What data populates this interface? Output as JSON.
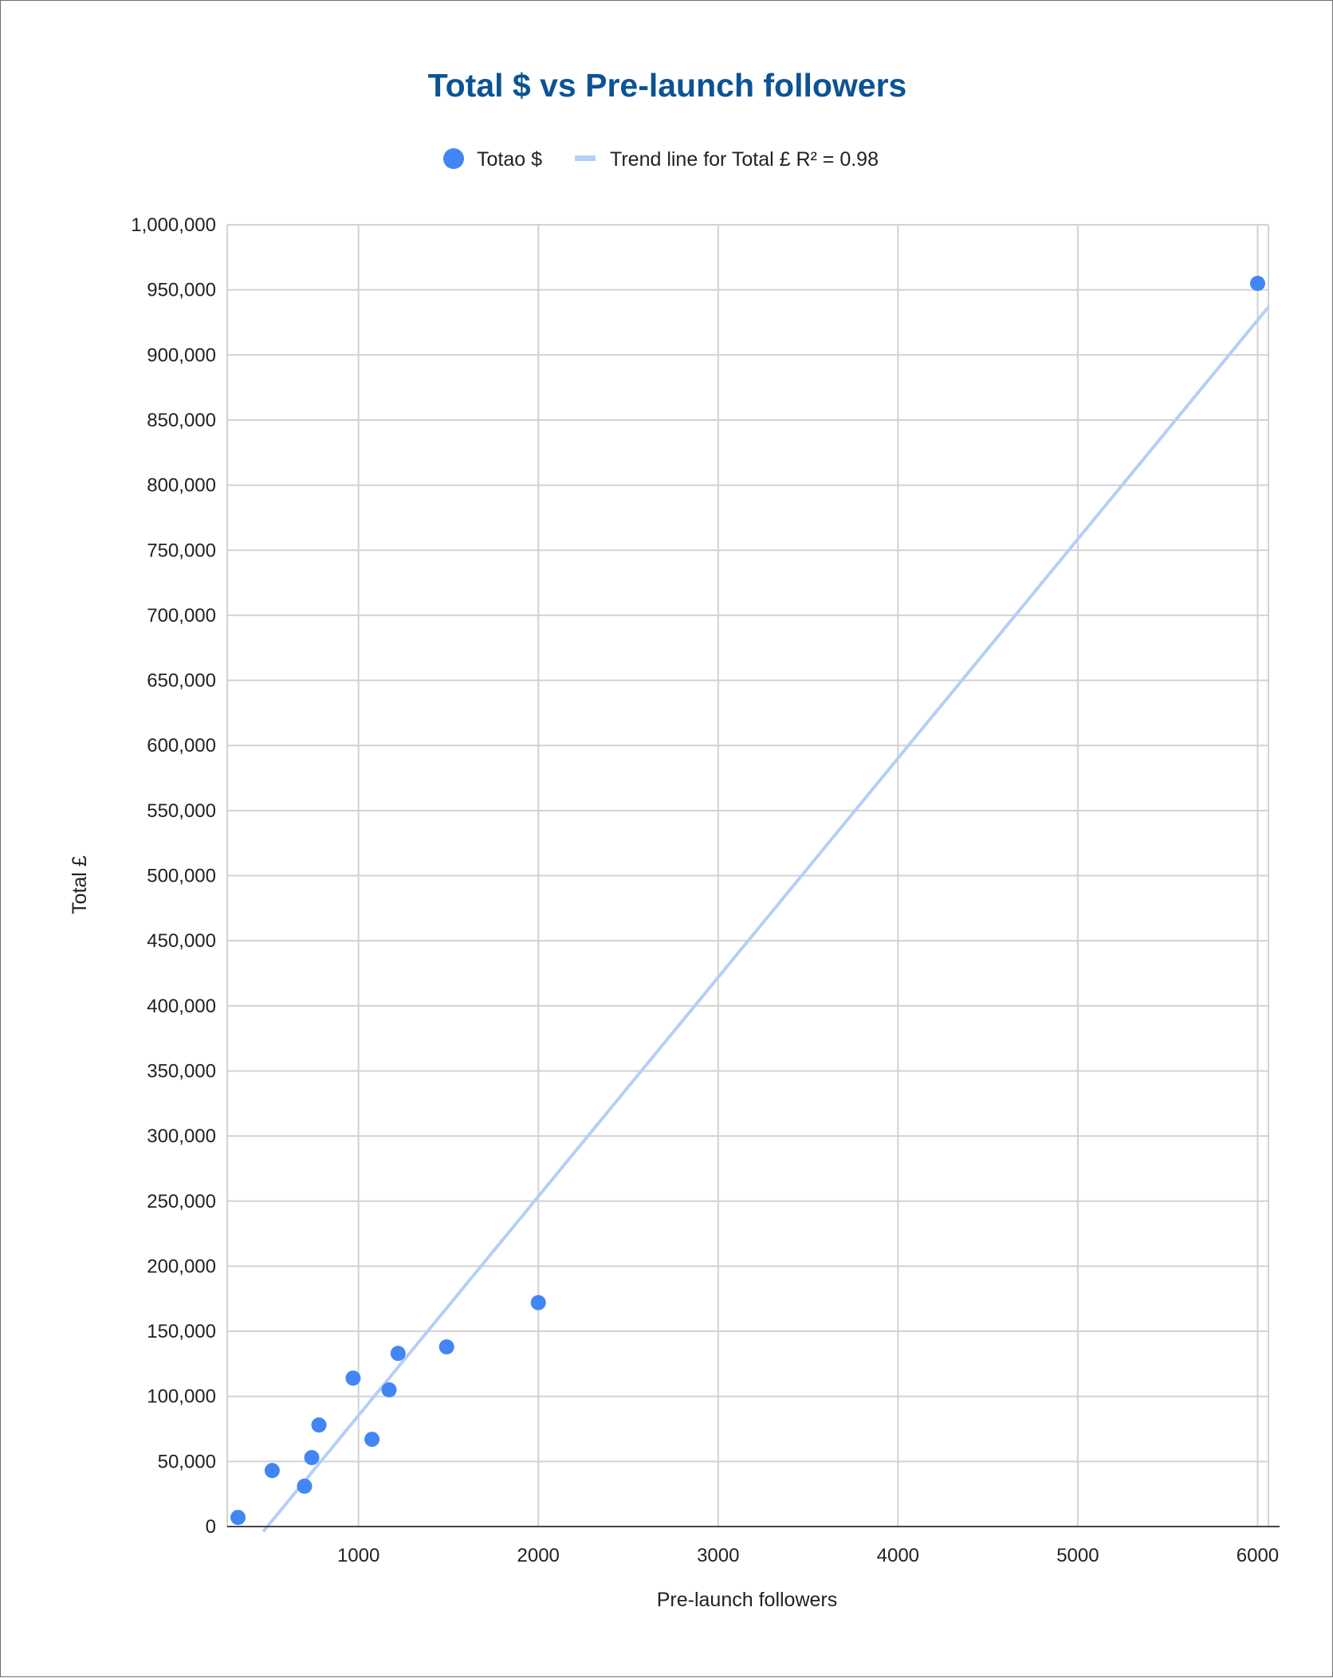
{
  "chart_data": {
    "type": "scatter",
    "title": "Total $ vs Pre-launch followers",
    "xlabel": "Pre-launch followers",
    "ylabel": "Total £",
    "xlim": [
      270,
      6060
    ],
    "ylim": [
      0,
      1000000
    ],
    "xticks": [
      1000,
      2000,
      3000,
      4000,
      5000,
      6000
    ],
    "yticks": [
      0,
      50000,
      100000,
      150000,
      200000,
      250000,
      300000,
      350000,
      400000,
      450000,
      500000,
      550000,
      600000,
      650000,
      700000,
      750000,
      800000,
      850000,
      900000,
      950000,
      1000000
    ],
    "xtick_labels": [
      "1000",
      "2000",
      "3000",
      "4000",
      "5000",
      "6000"
    ],
    "ytick_labels": [
      "0",
      "50,000",
      "100,000",
      "150,000",
      "200,000",
      "250,000",
      "300,000",
      "350,000",
      "400,000",
      "450,000",
      "500,000",
      "550,000",
      "600,000",
      "650,000",
      "700,000",
      "750,000",
      "800,000",
      "850,000",
      "900,000",
      "950,000",
      "1,000,000"
    ],
    "grid": true,
    "legend_position": "top",
    "series": [
      {
        "name": "Totao $",
        "type": "scatter",
        "color": "#4285f4",
        "points": [
          {
            "x": 330,
            "y": 7000
          },
          {
            "x": 520,
            "y": 43000
          },
          {
            "x": 700,
            "y": 31000
          },
          {
            "x": 740,
            "y": 53000
          },
          {
            "x": 780,
            "y": 78000
          },
          {
            "x": 970,
            "y": 114000
          },
          {
            "x": 1075,
            "y": 67000
          },
          {
            "x": 1170,
            "y": 105000
          },
          {
            "x": 1220,
            "y": 133000
          },
          {
            "x": 1490,
            "y": 138000
          },
          {
            "x": 2000,
            "y": 172000
          },
          {
            "x": 6000,
            "y": 955000
          }
        ]
      },
      {
        "name": "Trend line for Total £ R² = 0.98",
        "type": "trendline",
        "color": "#b5cff6",
        "slope": 168300,
        "intercept": -83000,
        "x_range": [
          470,
          6060
        ]
      }
    ]
  },
  "colors": {
    "title": "#0b5394",
    "points": "#4285f4",
    "trendline": "#b5cff6",
    "grid": "#d2d2d2"
  }
}
